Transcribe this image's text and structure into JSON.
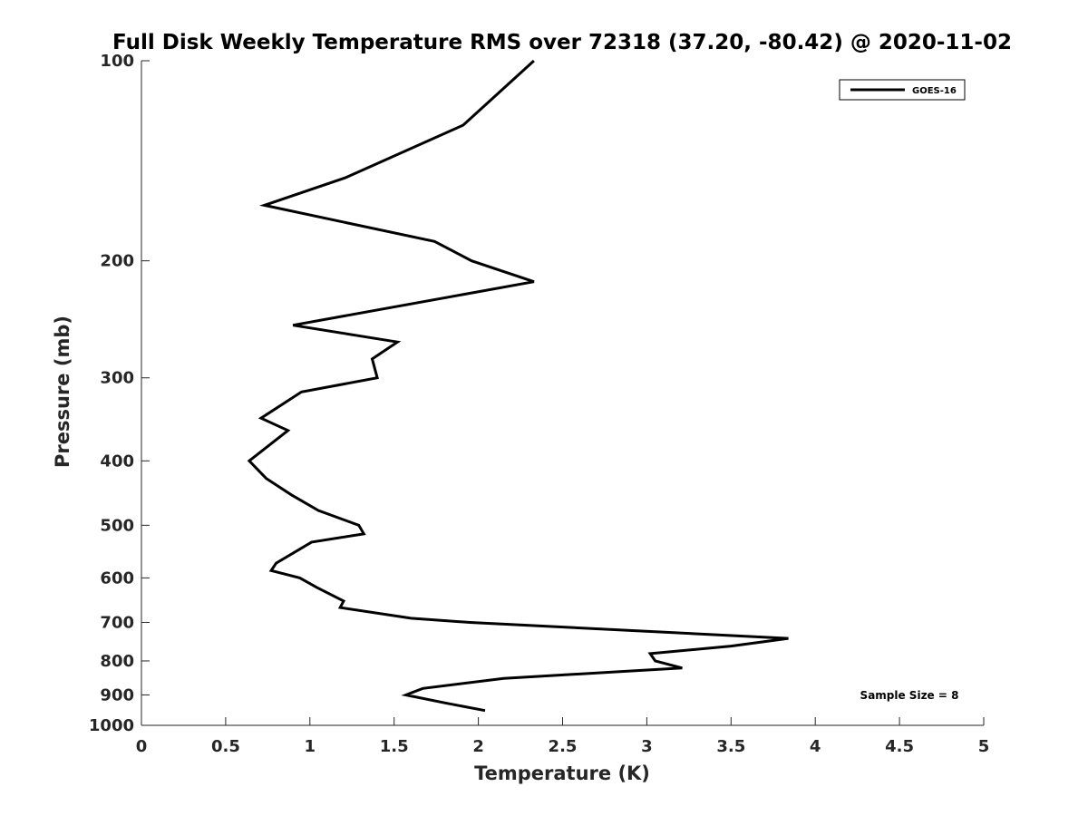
{
  "chart_data": {
    "type": "line",
    "title": "Full Disk Weekly Temperature RMS over 72318 (37.20, -80.42) @ 2020-11-02",
    "xlabel": "Temperature (K)",
    "ylabel": "Pressure (mb)",
    "xlim": [
      0,
      5
    ],
    "ylim": [
      100,
      1000
    ],
    "y_scale": "log",
    "y_reversed": true,
    "x_ticks": [
      "0",
      "0.5",
      "1",
      "1.5",
      "2",
      "2.5",
      "3",
      "3.5",
      "4",
      "4.5",
      "5"
    ],
    "x_tick_values": [
      0,
      0.5,
      1,
      1.5,
      2,
      2.5,
      3,
      3.5,
      4,
      4.5,
      5
    ],
    "y_ticks": [
      "100",
      "200",
      "300",
      "400",
      "500",
      "600",
      "700",
      "800",
      "900",
      "1000"
    ],
    "y_tick_values": [
      100,
      200,
      300,
      400,
      500,
      600,
      700,
      800,
      900,
      1000
    ],
    "grid": false,
    "legend_position": "top-right",
    "annotation": "Sample Size = 8",
    "series": [
      {
        "name": "GOES-16",
        "color": "#000000",
        "points": [
          {
            "x": 2.33,
            "y": 100
          },
          {
            "x": 1.91,
            "y": 125
          },
          {
            "x": 1.21,
            "y": 150
          },
          {
            "x": 0.73,
            "y": 165
          },
          {
            "x": 1.74,
            "y": 187
          },
          {
            "x": 1.96,
            "y": 200
          },
          {
            "x": 2.33,
            "y": 215
          },
          {
            "x": 0.9,
            "y": 250
          },
          {
            "x": 1.52,
            "y": 265
          },
          {
            "x": 1.37,
            "y": 281
          },
          {
            "x": 1.4,
            "y": 300
          },
          {
            "x": 0.95,
            "y": 315
          },
          {
            "x": 0.71,
            "y": 345
          },
          {
            "x": 0.87,
            "y": 360
          },
          {
            "x": 0.64,
            "y": 400
          },
          {
            "x": 0.74,
            "y": 425
          },
          {
            "x": 0.89,
            "y": 450
          },
          {
            "x": 1.05,
            "y": 475
          },
          {
            "x": 1.29,
            "y": 500
          },
          {
            "x": 1.32,
            "y": 515
          },
          {
            "x": 1.01,
            "y": 530
          },
          {
            "x": 0.8,
            "y": 570
          },
          {
            "x": 0.77,
            "y": 585
          },
          {
            "x": 0.94,
            "y": 600
          },
          {
            "x": 1.04,
            "y": 620
          },
          {
            "x": 1.2,
            "y": 650
          },
          {
            "x": 1.18,
            "y": 665
          },
          {
            "x": 1.6,
            "y": 690
          },
          {
            "x": 1.95,
            "y": 700
          },
          {
            "x": 3.84,
            "y": 740
          },
          {
            "x": 3.5,
            "y": 760
          },
          {
            "x": 3.02,
            "y": 780
          },
          {
            "x": 3.05,
            "y": 800
          },
          {
            "x": 3.21,
            "y": 820
          },
          {
            "x": 2.84,
            "y": 830
          },
          {
            "x": 2.15,
            "y": 850
          },
          {
            "x": 1.67,
            "y": 880
          },
          {
            "x": 1.57,
            "y": 900
          },
          {
            "x": 1.8,
            "y": 925
          },
          {
            "x": 2.04,
            "y": 950
          }
        ]
      }
    ]
  }
}
